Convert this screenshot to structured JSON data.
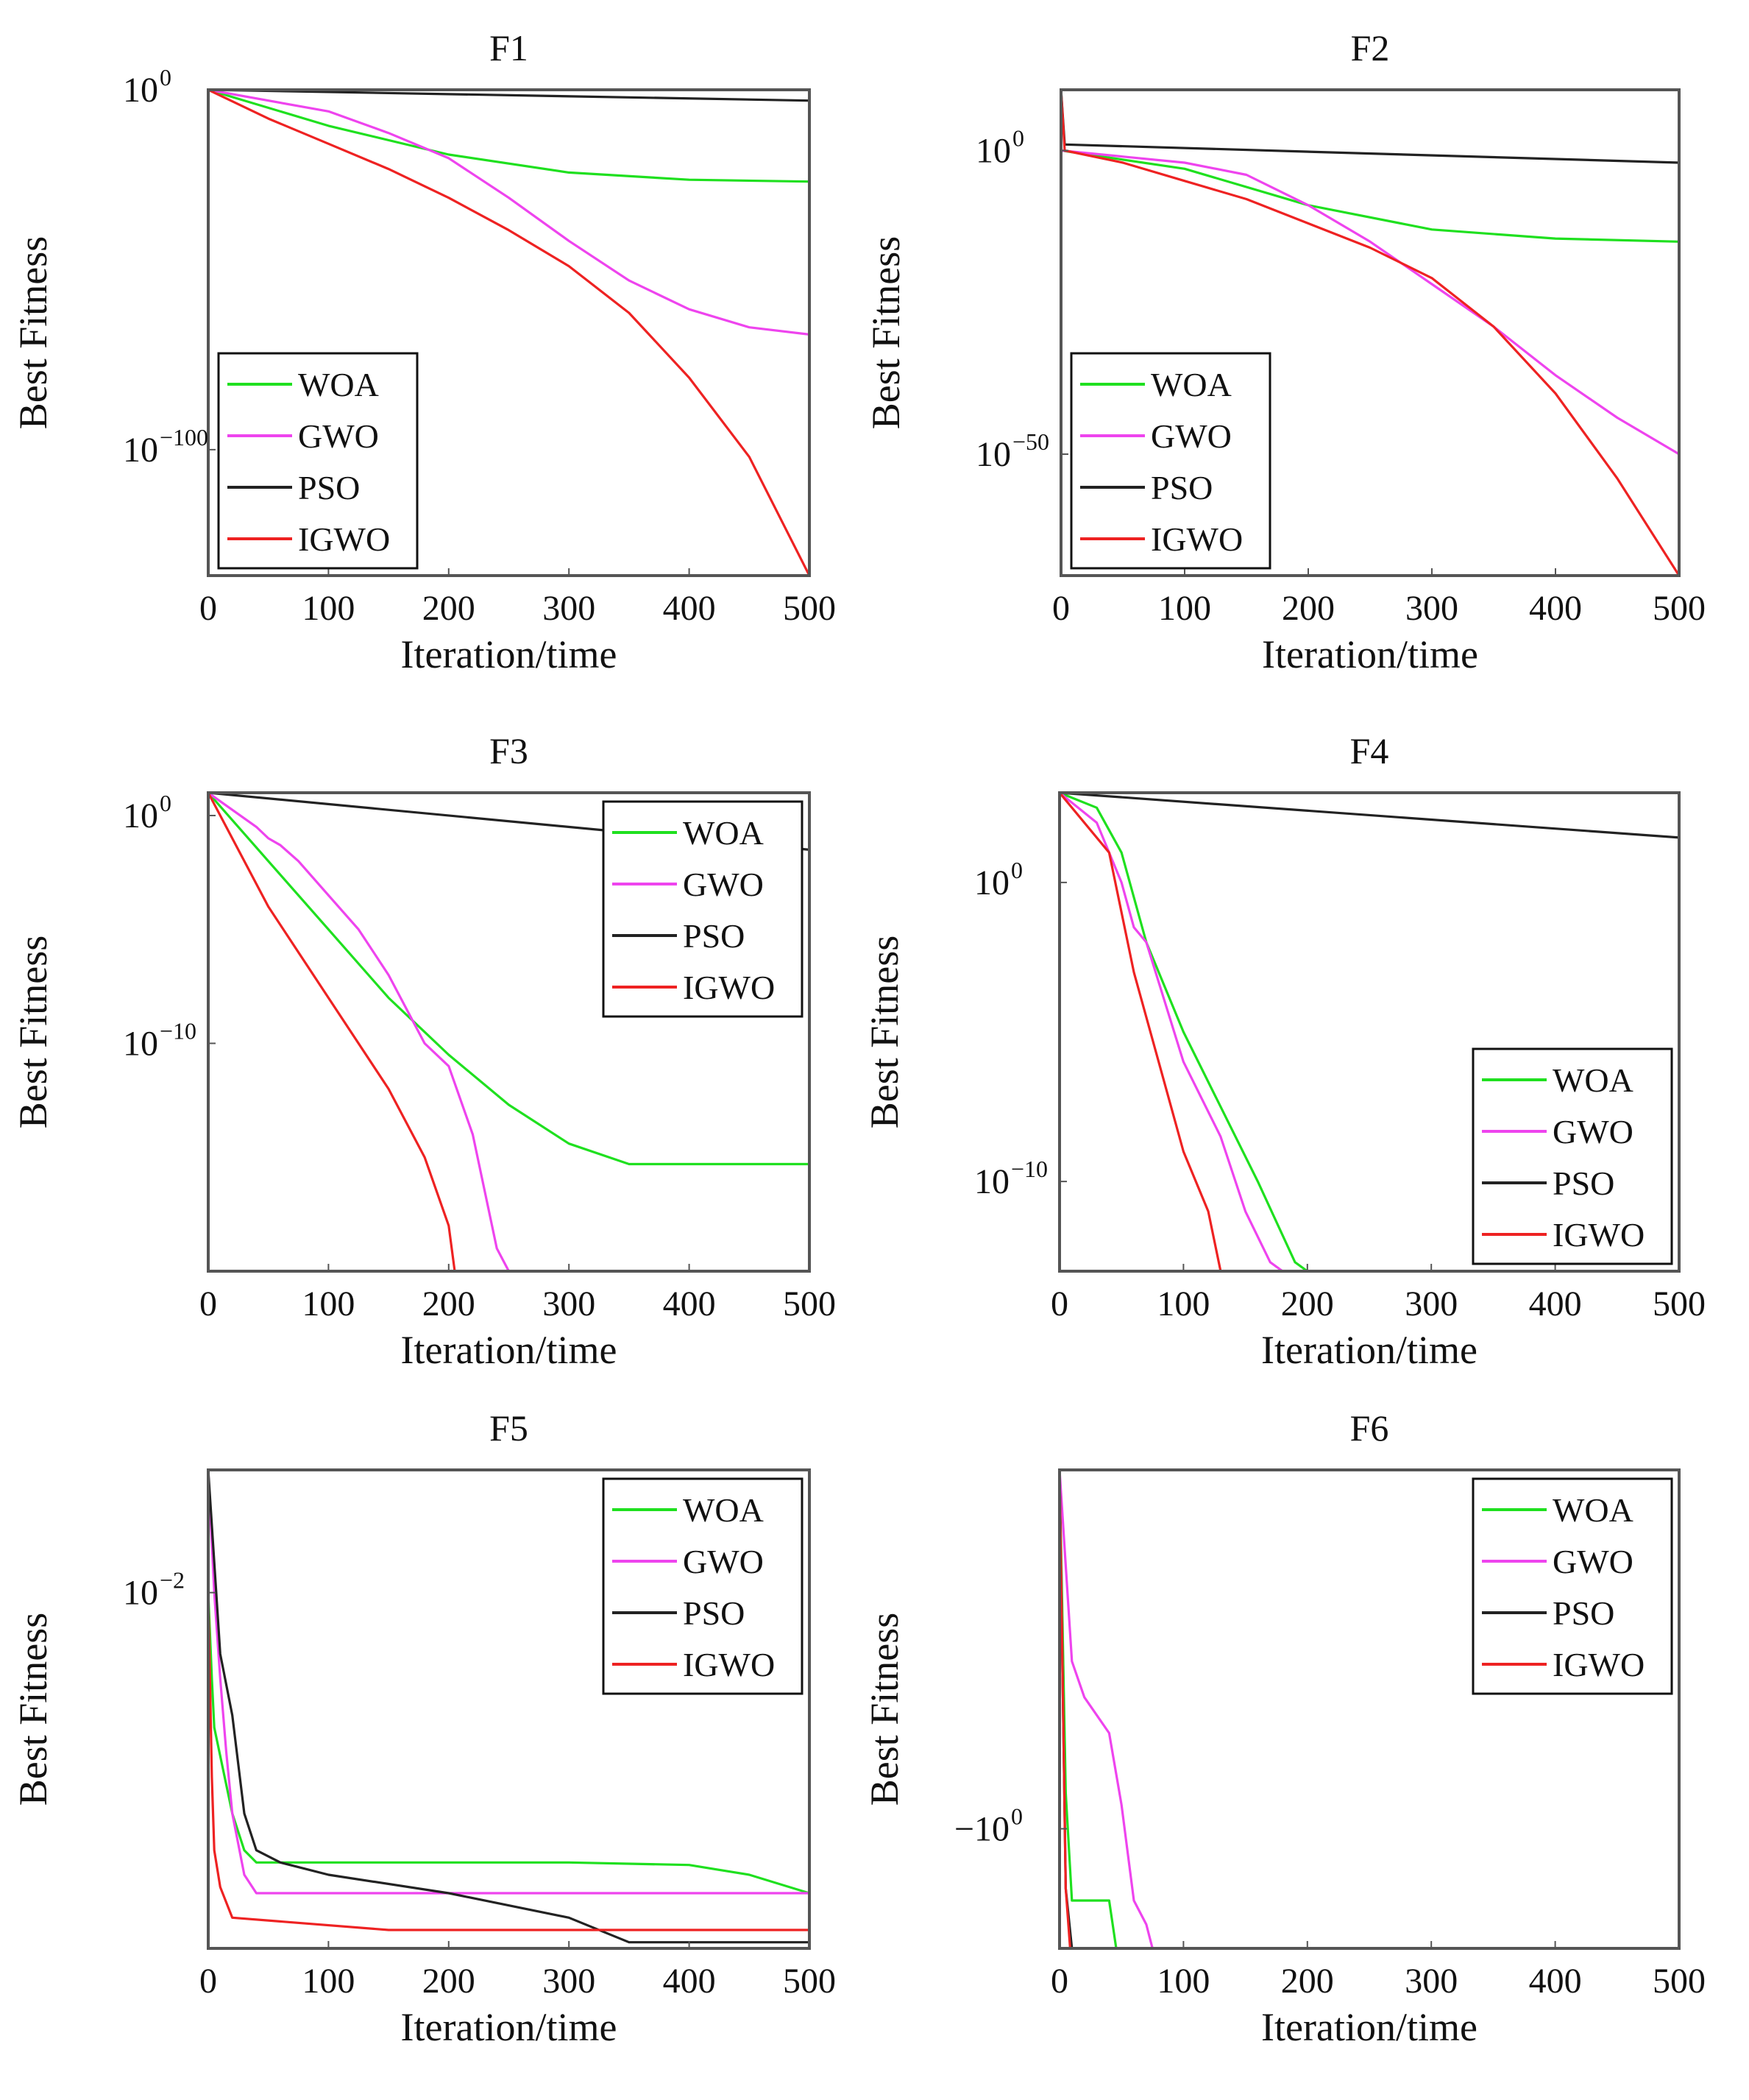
{
  "figure": {
    "series_colors": {
      "WOA": "#1fe01f",
      "GWO": "#ee44ee",
      "PSO": "#222222",
      "IGWO": "#ee2222"
    }
  },
  "chart_data": [
    {
      "type": "line",
      "title": "F1",
      "xlabel": "Iteration/time",
      "ylabel": "Best Fitness",
      "xlim": [
        0,
        500
      ],
      "xticks": [
        "0",
        "100",
        "200",
        "300",
        "400",
        "500"
      ],
      "yscale": "log",
      "ylim": [
        -135,
        0
      ],
      "yticks": [
        {
          "value": 0,
          "base": "10",
          "exp": "0"
        },
        {
          "value": -100,
          "base": "10",
          "exp": "−100"
        }
      ],
      "legend": "bottom-left",
      "series": [
        {
          "name": "WOA",
          "x": [
            0,
            100,
            200,
            300,
            400,
            500
          ],
          "y": [
            0,
            -10,
            -18,
            -23,
            -25,
            -25.5
          ]
        },
        {
          "name": "GWO",
          "x": [
            0,
            100,
            150,
            200,
            250,
            300,
            350,
            400,
            450,
            500
          ],
          "y": [
            0,
            -6,
            -12,
            -19,
            -30,
            -42,
            -53,
            -61,
            -66,
            -68
          ]
        },
        {
          "name": "PSO",
          "x": [
            0,
            500
          ],
          "y": [
            0,
            -3
          ]
        },
        {
          "name": "IGWO",
          "x": [
            0,
            50,
            100,
            150,
            200,
            250,
            300,
            350,
            400,
            450,
            500
          ],
          "y": [
            0,
            -8,
            -15,
            -22,
            -30,
            -39,
            -49,
            -62,
            -80,
            -102,
            -135
          ]
        }
      ]
    },
    {
      "type": "line",
      "title": "F2",
      "xlabel": "Iteration/time",
      "ylabel": "Best Fitness",
      "xlim": [
        0,
        500
      ],
      "xticks": [
        "0",
        "100",
        "200",
        "300",
        "400",
        "500"
      ],
      "yscale": "log",
      "ylim": [
        -70,
        10
      ],
      "yticks": [
        {
          "value": 0,
          "base": "10",
          "exp": "0"
        },
        {
          "value": -50,
          "base": "10",
          "exp": "−50"
        }
      ],
      "legend": "bottom-left",
      "series": [
        {
          "name": "WOA",
          "x": [
            0,
            100,
            200,
            300,
            400,
            500
          ],
          "y": [
            0,
            -3,
            -9,
            -13,
            -14.5,
            -15
          ]
        },
        {
          "name": "GWO",
          "x": [
            0,
            100,
            150,
            200,
            250,
            300,
            350,
            400,
            450,
            500
          ],
          "y": [
            0,
            -2,
            -4,
            -9,
            -15,
            -22,
            -29,
            -37,
            -44,
            -50
          ]
        },
        {
          "name": "PSO",
          "x": [
            0,
            3,
            500
          ],
          "y": [
            10,
            1,
            -2
          ]
        },
        {
          "name": "IGWO",
          "x": [
            0,
            3,
            50,
            100,
            150,
            200,
            250,
            300,
            350,
            400,
            450,
            500
          ],
          "y": [
            10,
            0,
            -2,
            -5,
            -8,
            -12,
            -16,
            -21,
            -29,
            -40,
            -54,
            -70
          ]
        }
      ]
    },
    {
      "type": "line",
      "title": "F3",
      "xlabel": "Iteration/time",
      "ylabel": "Best Fitness",
      "xlim": [
        0,
        500
      ],
      "xticks": [
        "0",
        "100",
        "200",
        "300",
        "400",
        "500"
      ],
      "yscale": "log",
      "ylim": [
        -20,
        1
      ],
      "yticks": [
        {
          "value": 0,
          "base": "10",
          "exp": "0"
        },
        {
          "value": -10,
          "base": "10",
          "exp": "−10"
        }
      ],
      "legend": "top-right",
      "series": [
        {
          "name": "WOA",
          "x": [
            0,
            50,
            100,
            150,
            200,
            250,
            300,
            350,
            400,
            500
          ],
          "y": [
            1,
            -2,
            -5,
            -8,
            -10.5,
            -12.7,
            -14.4,
            -15.3,
            -15.3,
            -15.3
          ]
        },
        {
          "name": "GWO",
          "x": [
            0,
            40,
            50,
            60,
            75,
            100,
            125,
            150,
            180,
            200,
            220,
            240,
            250,
            500
          ],
          "y": [
            1,
            -0.5,
            -1,
            -1.3,
            -2,
            -3.5,
            -5,
            -7,
            -10,
            -11,
            -14,
            -19,
            -20,
            -20
          ]
        },
        {
          "name": "PSO",
          "x": [
            0,
            500
          ],
          "y": [
            1,
            -1.5
          ]
        },
        {
          "name": "IGWO",
          "x": [
            0,
            50,
            100,
            150,
            180,
            200,
            205,
            500
          ],
          "y": [
            1,
            -4,
            -8,
            -12,
            -15,
            -18,
            -20,
            -20
          ]
        }
      ]
    },
    {
      "type": "line",
      "title": "F4",
      "xlabel": "Iteration/time",
      "ylabel": "Best Fitness",
      "xlim": [
        0,
        500
      ],
      "xticks": [
        "0",
        "100",
        "200",
        "300",
        "400",
        "500"
      ],
      "yscale": "log",
      "ylim": [
        -13,
        3
      ],
      "yticks": [
        {
          "value": 0,
          "base": "10",
          "exp": "0"
        },
        {
          "value": -10,
          "base": "10",
          "exp": "−10"
        }
      ],
      "legend": "bottom-right",
      "series": [
        {
          "name": "WOA",
          "x": [
            0,
            30,
            50,
            70,
            100,
            130,
            160,
            190,
            200,
            500
          ],
          "y": [
            3,
            2.5,
            1,
            -2,
            -5,
            -7.5,
            -10,
            -12.7,
            -13,
            -13
          ]
        },
        {
          "name": "GWO",
          "x": [
            0,
            30,
            50,
            60,
            70,
            100,
            130,
            150,
            170,
            180,
            500
          ],
          "y": [
            3,
            2,
            0,
            -1.5,
            -2,
            -6,
            -8.5,
            -11,
            -12.7,
            -13,
            -13
          ]
        },
        {
          "name": "PSO",
          "x": [
            0,
            500
          ],
          "y": [
            3,
            1.5
          ]
        },
        {
          "name": "IGWO",
          "x": [
            0,
            40,
            60,
            80,
            100,
            120,
            130,
            500
          ],
          "y": [
            3,
            1,
            -3,
            -6,
            -9,
            -11,
            -13,
            -13
          ]
        }
      ]
    },
    {
      "type": "line",
      "title": "F5",
      "xlabel": "Iteration/time",
      "ylabel": "Best Fitness",
      "xlim": [
        0,
        500
      ],
      "xticks": [
        "0",
        "100",
        "200",
        "300",
        "400",
        "500"
      ],
      "yscale": "log",
      "ylim": [
        -4.9,
        -1
      ],
      "yticks": [
        {
          "value": -2,
          "base": "10",
          "exp": "−2"
        }
      ],
      "legend": "top-right",
      "series": [
        {
          "name": "WOA",
          "x": [
            0,
            3,
            5,
            20,
            30,
            40,
            300,
            400,
            450,
            500
          ],
          "y": [
            -2,
            -2.7,
            -3.1,
            -3.8,
            -4.1,
            -4.2,
            -4.2,
            -4.22,
            -4.3,
            -4.45
          ]
        },
        {
          "name": "GWO",
          "x": [
            0,
            5,
            10,
            15,
            20,
            30,
            40,
            500
          ],
          "y": [
            -1,
            -2,
            -2.7,
            -3.3,
            -3.8,
            -4.3,
            -4.45,
            -4.45
          ]
        },
        {
          "name": "PSO",
          "x": [
            0,
            10,
            20,
            30,
            40,
            60,
            100,
            200,
            300,
            350,
            500
          ],
          "y": [
            -1,
            -2.5,
            -3,
            -3.8,
            -4.1,
            -4.2,
            -4.3,
            -4.45,
            -4.65,
            -4.85,
            -4.85
          ]
        },
        {
          "name": "IGWO",
          "x": [
            0,
            3,
            5,
            10,
            20,
            150,
            500
          ],
          "y": [
            -2,
            -3.5,
            -4.1,
            -4.4,
            -4.65,
            -4.75,
            -4.75
          ]
        }
      ]
    },
    {
      "type": "line",
      "title": "F6",
      "xlabel": "Iteration/time",
      "ylabel": "Best Fitness",
      "xlim": [
        0,
        500
      ],
      "xticks": [
        "0",
        "100",
        "200",
        "300",
        "400",
        "500"
      ],
      "yscale": "log",
      "ylim": [
        -1,
        3
      ],
      "yticks": [
        {
          "value": 0,
          "base": "−10",
          "exp": "0"
        }
      ],
      "legend": "top-right",
      "series": [
        {
          "name": "WOA",
          "x": [
            0,
            5,
            10,
            40,
            50,
            500
          ],
          "y": [
            3,
            0.3,
            -0.6,
            -0.6,
            -1.3,
            -1.3
          ]
        },
        {
          "name": "GWO",
          "x": [
            0,
            10,
            20,
            40,
            50,
            60,
            70,
            80,
            130,
            260,
            300,
            400,
            500
          ],
          "y": [
            3,
            1.4,
            1.1,
            0.8,
            0.2,
            -0.6,
            -0.8,
            -1.2,
            -1.4,
            -1.9,
            -2.0,
            -2.1,
            -2.3
          ]
        },
        {
          "name": "PSO",
          "x": [
            0,
            5,
            10,
            20,
            30,
            150,
            155,
            165,
            170,
            190,
            200,
            500
          ],
          "y": [
            3,
            -0.5,
            -1,
            -1.1,
            -1.1,
            -1.1,
            -2,
            -2.9,
            -3,
            -3.05,
            -3.1,
            -3.1
          ]
        },
        {
          "name": "IGWO",
          "x": [
            0,
            5,
            10,
            15,
            20,
            30,
            40,
            50,
            60,
            80,
            100,
            500
          ],
          "y": [
            3,
            -0.5,
            -1.2,
            -1.5,
            -1.7,
            -2.5,
            -2.8,
            -2.9,
            -3,
            -3.05,
            -3.1,
            -3.1
          ]
        }
      ]
    }
  ]
}
